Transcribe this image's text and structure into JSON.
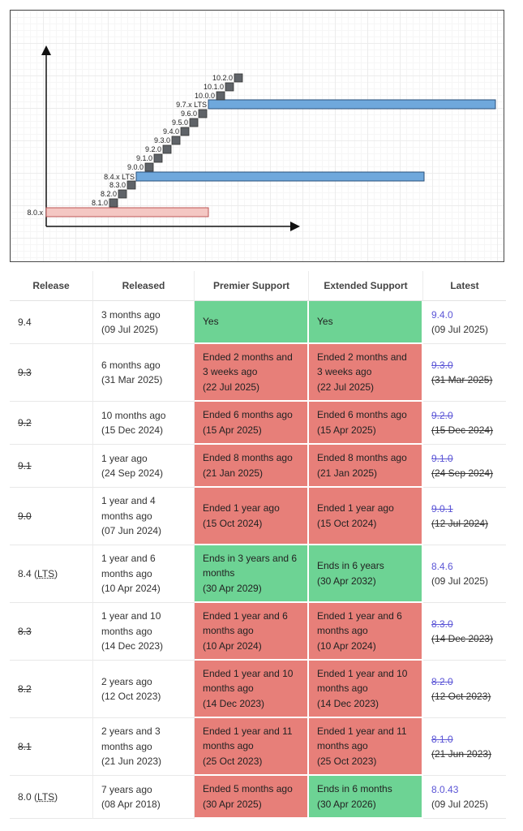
{
  "diagram": {
    "labels": [
      "10.2.0",
      "10.1.0",
      "10.0.0",
      "9.7.x LTS",
      "9.6.0",
      "9.5.0",
      "9.4.0",
      "9.3.0",
      "9.2.0",
      "9.1.0",
      "9.0.0",
      "8.4.x LTS",
      "8.3.0",
      "8.2.0",
      "8.1.0",
      "8.0.x"
    ],
    "colors": {
      "lts_bar": "#6fa8dc",
      "eol_bar": "#f4c7c3",
      "step": "#5f6368"
    }
  },
  "table": {
    "headers": {
      "release": "Release",
      "released": "Released",
      "premier": "Premier Support",
      "extended": "Extended Support",
      "latest": "Latest"
    },
    "rows": [
      {
        "release": "9.4",
        "released": [
          "3 months ago",
          "(09 Jul 2025)"
        ],
        "premier": [
          "Yes"
        ],
        "extended": [
          "Yes"
        ],
        "latest_version": "9.4.0",
        "latest_date": "(09 Jul 2025)"
      },
      {
        "release": "9.3",
        "released": [
          "6 months ago",
          "(31 Mar 2025)"
        ],
        "premier": [
          "Ended 2 months and",
          "3 weeks ago",
          "(22 Jul 2025)"
        ],
        "extended": [
          "Ended 2 months and",
          "3 weeks ago",
          "(22 Jul 2025)"
        ],
        "latest_version": "9.3.0",
        "latest_date": "(31 Mar 2025)"
      },
      {
        "release": "9.2",
        "released": [
          "10 months ago",
          "(15 Dec 2024)"
        ],
        "premier": [
          "Ended 6 months ago",
          "(15 Apr 2025)"
        ],
        "extended": [
          "Ended 6 months ago",
          "(15 Apr 2025)"
        ],
        "latest_version": "9.2.0",
        "latest_date": "(15 Dec 2024)"
      },
      {
        "release": "9.1",
        "released": [
          "1 year ago",
          "(24 Sep 2024)"
        ],
        "premier": [
          "Ended 8 months ago",
          "(21 Jan 2025)"
        ],
        "extended": [
          "Ended 8 months ago",
          "(21 Jan 2025)"
        ],
        "latest_version": "9.1.0",
        "latest_date": "(24 Sep 2024)"
      },
      {
        "release": "9.0",
        "released": [
          "1 year and 4",
          "months ago",
          "(07 Jun 2024)"
        ],
        "premier": [
          "Ended 1 year ago",
          "(15 Oct 2024)"
        ],
        "extended": [
          "Ended 1 year ago",
          "(15 Oct 2024)"
        ],
        "latest_version": "9.0.1",
        "latest_date": "(12 Jul 2024)"
      },
      {
        "release": "8.4",
        "release_suffix": "LTS",
        "released": [
          "1 year and 6",
          "months ago",
          "(10 Apr 2024)"
        ],
        "premier": [
          "Ends in 3 years and 6",
          "months",
          "(30 Apr 2029)"
        ],
        "extended": [
          "Ends in 6 years",
          "(30 Apr 2032)"
        ],
        "latest_version": "8.4.6",
        "latest_date": "(09 Jul 2025)"
      },
      {
        "release": "8.3",
        "released": [
          "1 year and 10",
          "months ago",
          "(14 Dec 2023)"
        ],
        "premier": [
          "Ended 1 year and 6",
          "months ago",
          "(10 Apr 2024)"
        ],
        "extended": [
          "Ended 1 year and 6",
          "months ago",
          "(10 Apr 2024)"
        ],
        "latest_version": "8.3.0",
        "latest_date": "(14 Dec 2023)"
      },
      {
        "release": "8.2",
        "released": [
          "2 years ago",
          "(12 Oct 2023)"
        ],
        "premier": [
          "Ended 1 year and 10",
          "months ago",
          "(14 Dec 2023)"
        ],
        "extended": [
          "Ended 1 year and 10",
          "months ago",
          "(14 Dec 2023)"
        ],
        "latest_version": "8.2.0",
        "latest_date": "(12 Oct 2023)"
      },
      {
        "release": "8.1",
        "released": [
          "2 years and 3",
          "months ago",
          "(21 Jun 2023)"
        ],
        "premier": [
          "Ended 1 year and 11",
          "months ago",
          "(25 Oct 2023)"
        ],
        "extended": [
          "Ended 1 year and 11",
          "months ago",
          "(25 Oct 2023)"
        ],
        "latest_version": "8.1.0",
        "latest_date": "(21 Jun 2023)"
      },
      {
        "release": "8.0",
        "release_suffix": "LTS",
        "released": [
          "7 years ago",
          "(08 Apr 2018)"
        ],
        "premier": [
          "Ended 5 months ago",
          "(30 Apr 2025)"
        ],
        "extended": [
          "Ends in 6 months",
          "(30 Apr 2026)"
        ],
        "latest_version": "8.0.43",
        "latest_date": "(09 Jul 2025)"
      }
    ]
  }
}
